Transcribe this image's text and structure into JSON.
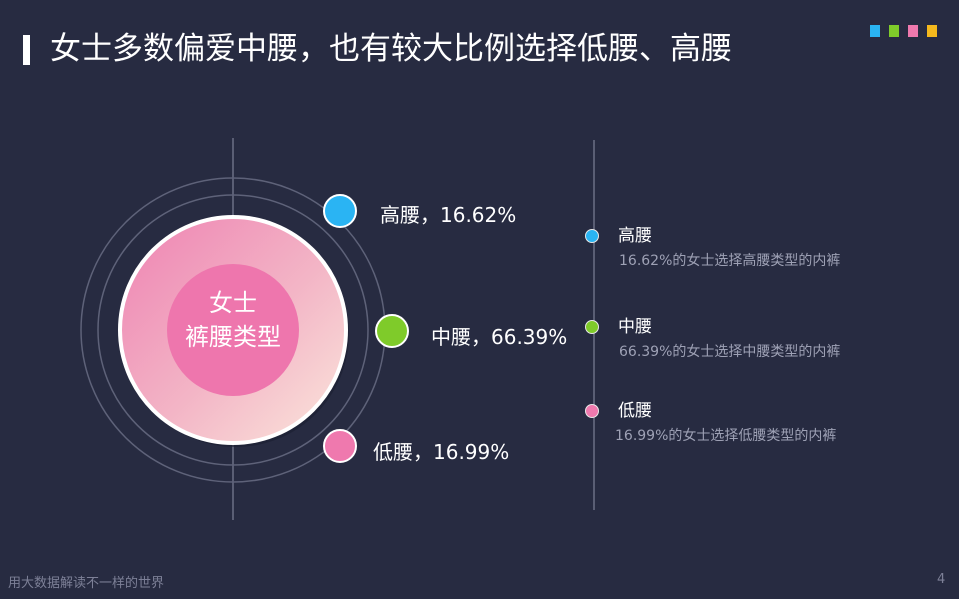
{
  "slide": {
    "title": "女士多数偏爱中腰，也有较大比例选择低腰、高腰",
    "corner_square_colors": [
      "#2ab4f3",
      "#7fcb2a",
      "#ef79ae",
      "#f5b91d"
    ]
  },
  "diagram": {
    "center_line1": "女士",
    "center_line2": "裤腰类型",
    "items": [
      {
        "label": "高腰，16.62%",
        "color": "#2ab4f3"
      },
      {
        "label": "中腰，66.39%",
        "color": "#7fcb2a"
      },
      {
        "label": "低腰，16.99%",
        "color": "#ef79ae"
      }
    ]
  },
  "legend": [
    {
      "title": "高腰",
      "desc": "16.62%的女士选择高腰类型的内裤",
      "color": "#2ab4f3"
    },
    {
      "title": "中腰",
      "desc": "66.39%的女士选择中腰类型的内裤",
      "color": "#7fcb2a"
    },
    {
      "title": "低腰",
      "desc": "16.99%的女士选择低腰类型的内裤",
      "color": "#ef79ae"
    }
  ],
  "footer": {
    "text": "用大数据解读不一样的世界",
    "page": "4"
  }
}
